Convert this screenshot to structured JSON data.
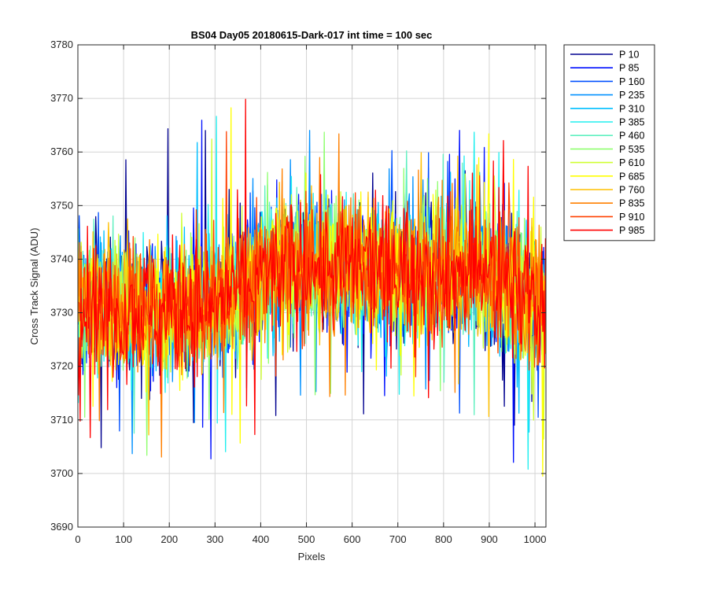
{
  "chart_data": {
    "type": "line",
    "title": "BS04 Day05 20180615-Dark-017 int time = 100 sec",
    "xlabel": "Pixels",
    "ylabel": "Cross Track Signal (ADU)",
    "xlim": [
      0,
      1024
    ],
    "ylim": [
      3690,
      3780
    ],
    "x_ticks": [
      0,
      100,
      200,
      300,
      400,
      500,
      600,
      700,
      800,
      900,
      1000
    ],
    "y_ticks": [
      3690,
      3700,
      3710,
      3720,
      3730,
      3740,
      3750,
      3760,
      3770,
      3780
    ],
    "grid": true,
    "legend_position": "outside-top-right",
    "x_range": [
      1,
      1024
    ],
    "series": [
      {
        "name": "P 10",
        "color": "#00008F"
      },
      {
        "name": "P 85",
        "color": "#0010FF"
      },
      {
        "name": "P 160",
        "color": "#0050FF"
      },
      {
        "name": "P 235",
        "color": "#0090FF"
      },
      {
        "name": "P 310",
        "color": "#00BFFF"
      },
      {
        "name": "P 385",
        "color": "#20EFEF"
      },
      {
        "name": "P 460",
        "color": "#60F0C0"
      },
      {
        "name": "P 535",
        "color": "#90FF70"
      },
      {
        "name": "P 610",
        "color": "#CFFF30"
      },
      {
        "name": "P 685",
        "color": "#FFFF00"
      },
      {
        "name": "P 760",
        "color": "#FFC000"
      },
      {
        "name": "P 835",
        "color": "#FF8000"
      },
      {
        "name": "P 910",
        "color": "#FF4000"
      },
      {
        "name": "P 985",
        "color": "#FF0000"
      }
    ],
    "baseline_profile": {
      "x": [
        0,
        100,
        200,
        300,
        400,
        500,
        600,
        700,
        800,
        900,
        1024
      ],
      "y": [
        3733,
        3731,
        3730,
        3732,
        3737,
        3739,
        3738,
        3739,
        3738,
        3737,
        3732
      ]
    },
    "noise_amplitude": 11
  }
}
